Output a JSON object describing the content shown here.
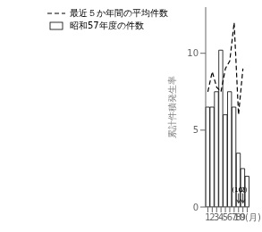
{
  "chart_data": {
    "type": "bar",
    "categories": [
      "1",
      "2",
      "3",
      "4",
      "5",
      "6",
      "7",
      "8",
      "9",
      "10(月)"
    ],
    "series": [
      {
        "name": "最近５か年間の平均件数",
        "type": "line",
        "color": "#000000",
        "line_style": "dashed",
        "values": [
          7.5,
          8.8,
          7.8,
          7.5,
          9.0,
          9.5,
          12.0,
          6.0,
          9.0,
          null
        ]
      },
      {
        "name": "昭和57年度の件数",
        "type": "bar",
        "color": "#ffffff",
        "values": [
          6.5,
          6.5,
          7.5,
          10.2,
          6.0,
          7.5,
          6.5,
          3.5,
          2.5,
          2.0
        ]
      }
    ],
    "ylabel": "累計件積発生率",
    "ylim": [
      0,
      13
    ],
    "yticks": [
      0,
      5,
      10
    ],
    "annotations": [
      {
        "x": "8",
        "y": 0.95,
        "text": "(10)"
      },
      {
        "x": "9",
        "y": 0.95,
        "text": "(2)"
      }
    ],
    "grid": false,
    "legend": "upper left"
  }
}
